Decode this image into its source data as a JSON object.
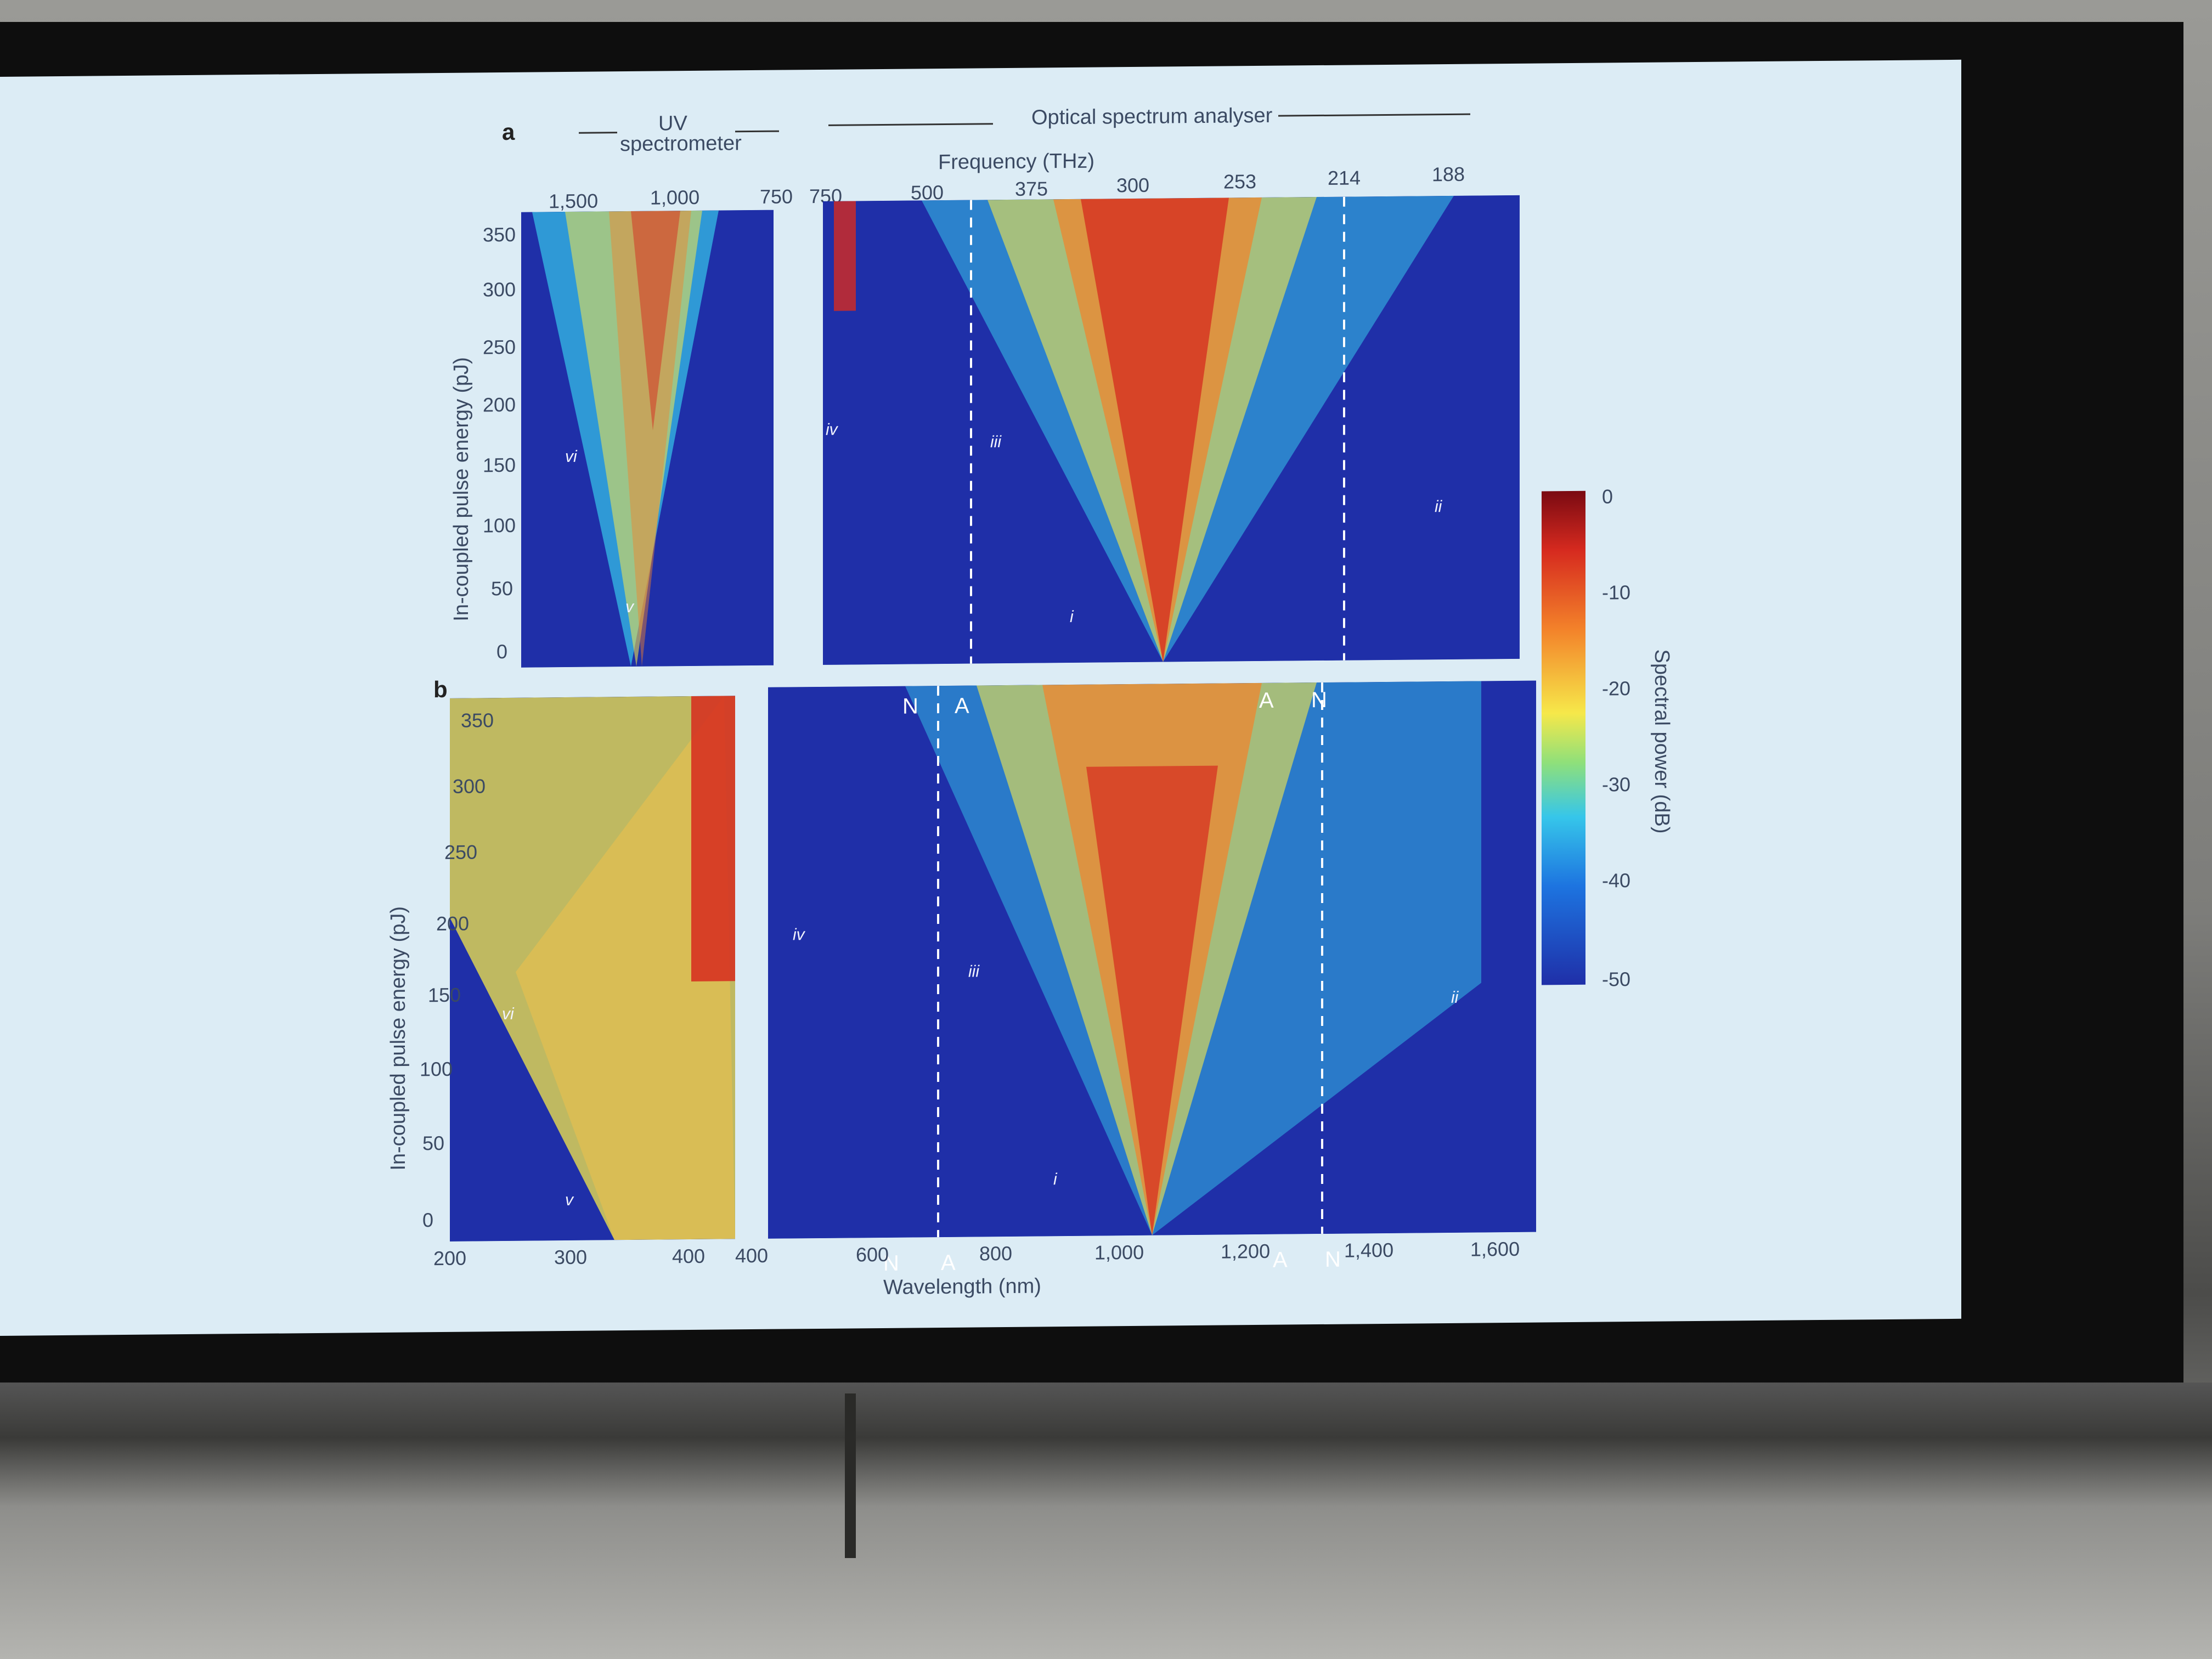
{
  "panel_labels": {
    "a": "a",
    "b": "b"
  },
  "header": {
    "uv_line1": "UV",
    "uv_line2": "spectrometer",
    "osa": "Optical spectrum analyser",
    "frequency_label": "Frequency (THz)"
  },
  "freq_ticks_uv": [
    "1,500",
    "1,000",
    "750"
  ],
  "freq_ticks_osa": [
    "750",
    "500",
    "375",
    "300",
    "253",
    "214",
    "188"
  ],
  "y_ticks": [
    "350",
    "300",
    "250",
    "200",
    "150",
    "100",
    "50",
    "0"
  ],
  "y_label": "In-coupled pulse energy (pJ)",
  "x_ticks_uv": [
    "200",
    "300",
    "400"
  ],
  "x_ticks_osa": [
    "400",
    "600",
    "800",
    "1,000",
    "1,200",
    "1,400",
    "1,600"
  ],
  "x_label": "Wavelength (nm)",
  "colorbar": {
    "label": "Spectral power (dB)",
    "ticks": [
      "0",
      "-10",
      "-20",
      "-30",
      "-40",
      "-50"
    ]
  },
  "markers": {
    "N": "N",
    "A": "A",
    "i": "i",
    "ii": "ii",
    "iii": "iii",
    "iv": "iv",
    "v": "v",
    "vi": "vi"
  }
}
